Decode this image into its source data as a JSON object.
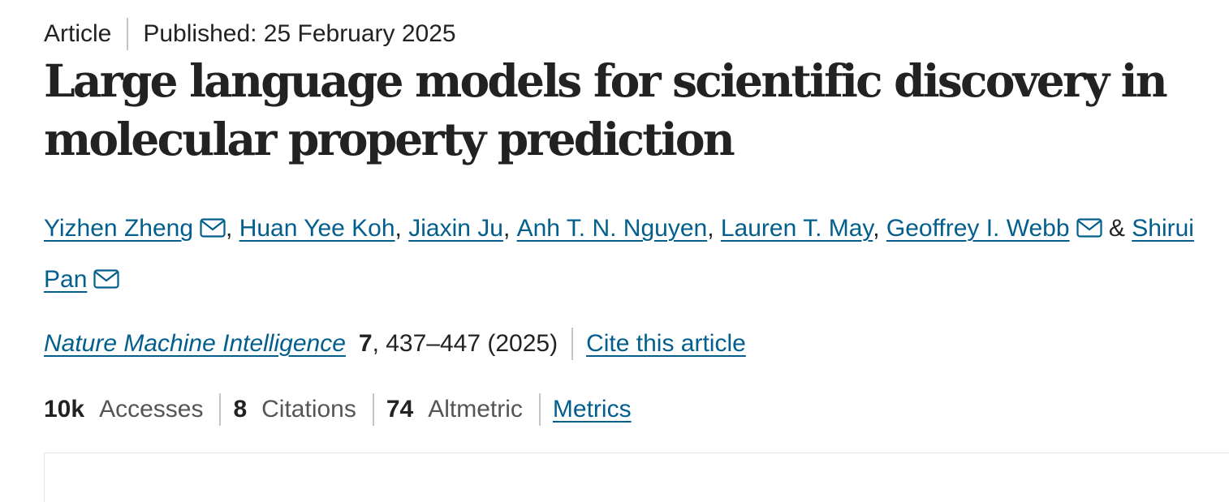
{
  "header": {
    "article_type": "Article",
    "published": "Published: 25 February 2025"
  },
  "title_lines": [
    "Large language models for scientific discovery in",
    "molecular property prediction"
  ],
  "authors": [
    {
      "name": "Yizhen Zheng",
      "sep": ", "
    },
    {
      "name": "Huan Yee Koh",
      "sep": ", "
    },
    {
      "name": "Jiaxin Ju",
      "sep": ", "
    },
    {
      "name": "Anh T. N. Nguyen",
      "sep": ", "
    },
    {
      "name": "Lauren T. May",
      "sep": ", "
    },
    {
      "name": "Geoffrey I. Webb",
      "sep": " & "
    },
    {
      "name": "Shirui Pan",
      "sep": ""
    }
  ],
  "author_icons": {
    "email": "envelope-icon"
  },
  "citation": {
    "journal": "Nature Machine Intelligence",
    "volume": "7",
    "pages_year": ", 437–447 (2025)",
    "cite_link": "Cite this article"
  },
  "metrics": {
    "accesses_value": "10k",
    "accesses_label": "Accesses",
    "citations_value": "8",
    "citations_label": "Citations",
    "altmetric_value": "74",
    "altmetric_label": "Altmetric",
    "metrics_link": "Metrics"
  },
  "colors": {
    "link": "#025e8d",
    "text": "#222222",
    "muted": "#555555",
    "divider": "#c5c5c5"
  }
}
